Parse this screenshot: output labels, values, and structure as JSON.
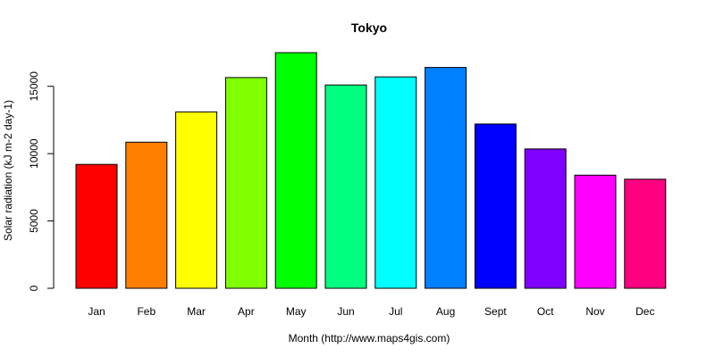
{
  "chart_data": {
    "type": "bar",
    "title": "Tokyo",
    "xlabel": "Month (http://www.maps4gis.com)",
    "ylabel": "Solar radiation (kJ m-2 day-1)",
    "categories": [
      "Jan",
      "Feb",
      "Mar",
      "Apr",
      "May",
      "Jun",
      "Jul",
      "Aug",
      "Sept",
      "Oct",
      "Nov",
      "Dec"
    ],
    "values": [
      9200,
      10850,
      13100,
      15650,
      17500,
      15100,
      15700,
      16400,
      12200,
      10350,
      8400,
      8100
    ],
    "colors": [
      "#FF0000",
      "#FF8000",
      "#FFFF00",
      "#80FF00",
      "#00FF00",
      "#00FF80",
      "#00FFFF",
      "#0080FF",
      "#0000FF",
      "#8000FF",
      "#FF00FF",
      "#FF0080"
    ],
    "yticks": [
      0,
      5000,
      10000,
      15000
    ],
    "ytick_labels": [
      "0",
      "5000",
      "10000",
      "15000"
    ],
    "ylim": [
      0,
      17500
    ],
    "grid": false,
    "legend": "none"
  }
}
